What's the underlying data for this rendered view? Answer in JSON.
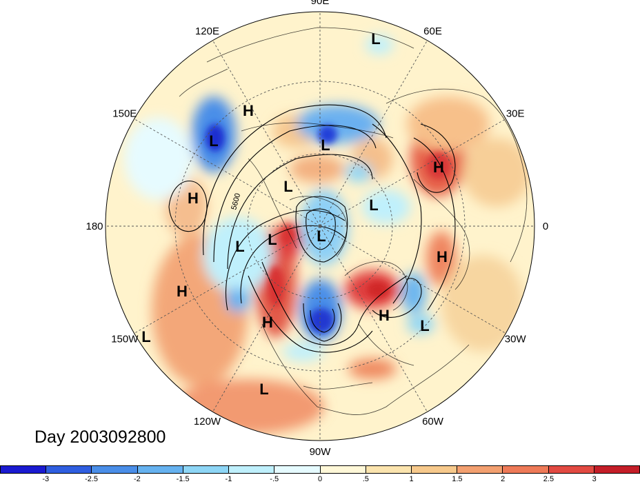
{
  "map": {
    "longitude_labels": [
      {
        "text": "90E",
        "angle": 90
      },
      {
        "text": "60E",
        "angle": 60
      },
      {
        "text": "30E",
        "angle": 30
      },
      {
        "text": "0",
        "angle": 0
      },
      {
        "text": "30W",
        "angle": -30
      },
      {
        "text": "60W",
        "angle": -60
      },
      {
        "text": "90W",
        "angle": -90
      },
      {
        "text": "120W",
        "angle": -120
      },
      {
        "text": "150W",
        "angle": -150
      },
      {
        "text": "180",
        "angle": 180
      },
      {
        "text": "150E",
        "angle": 150
      },
      {
        "text": "120E",
        "angle": 120
      }
    ],
    "contour_label": "5600",
    "pressure_centers": [
      {
        "type": "L",
        "name": "L-ne-top"
      },
      {
        "type": "H",
        "name": "H-siberia"
      },
      {
        "type": "L",
        "name": "L-kamchatka"
      },
      {
        "type": "L",
        "name": "L-central-asia"
      },
      {
        "type": "H",
        "name": "H-europe"
      },
      {
        "type": "L",
        "name": "L-east-siberia"
      },
      {
        "type": "H",
        "name": "H-pacific-north"
      },
      {
        "type": "L",
        "name": "L-arctic-east"
      },
      {
        "type": "L",
        "name": "L-alaska"
      },
      {
        "type": "L",
        "name": "L-pole"
      },
      {
        "type": "L",
        "name": "L-bering"
      },
      {
        "type": "H",
        "name": "H-atlantic"
      },
      {
        "type": "H",
        "name": "H-pacific-east"
      },
      {
        "type": "H",
        "name": "H-canada-west"
      },
      {
        "type": "H",
        "name": "H-greenland"
      },
      {
        "type": "L",
        "name": "L-atlantic-low"
      },
      {
        "type": "L",
        "name": "L-150w"
      },
      {
        "type": "L",
        "name": "L-pacific-south"
      }
    ],
    "anomaly_colors": {
      "deep_negative": "#1f1fd8",
      "negative": "#4aa0f0",
      "weak_negative": "#bff0ff",
      "neutral": "#fff8d8",
      "weak_positive": "#f7d39a",
      "positive": "#f08a60",
      "deep_positive": "#d83030"
    }
  },
  "title": {
    "day_label": "Day 2003092800"
  },
  "colorbar": {
    "colors": [
      "#1a1ad0",
      "#2f5ee0",
      "#4a8ee8",
      "#66b2f0",
      "#8ed6f6",
      "#bff0fc",
      "#e6fbff",
      "#fff8d8",
      "#fbe4ae",
      "#f7c98c",
      "#f3a070",
      "#ee7a58",
      "#e24a42",
      "#c41e28"
    ],
    "tick_labels": [
      "-3",
      "-2.5",
      "-2",
      "-1.5",
      "-1",
      "-.5",
      "0",
      ".5",
      "1",
      "1.5",
      "2",
      "2.5",
      "3"
    ]
  }
}
